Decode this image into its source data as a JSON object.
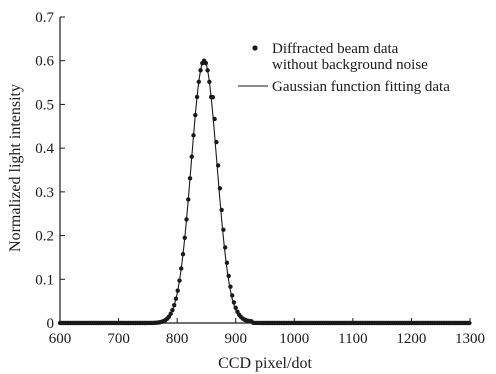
{
  "chart_data": {
    "type": "scatter",
    "title": "",
    "xlabel": "CCD pixel/dot",
    "ylabel": "Normalized light intensity",
    "xlim": [
      600,
      1300
    ],
    "ylim": [
      0,
      0.7
    ],
    "x_ticks": [
      "600",
      "700",
      "800",
      "900",
      "1000",
      "1100",
      "1200",
      "1300"
    ],
    "y_ticks": [
      "0",
      "0.1",
      "0.2",
      "0.3",
      "0.4",
      "0.5",
      "0.6",
      "0.7"
    ],
    "grid": false,
    "legend_position": "top-right",
    "legend": [
      {
        "label_lines": [
          "Diffracted beam data",
          "without background noise"
        ],
        "marker": "dot"
      },
      {
        "label_lines": [
          "Gaussian function fitting data"
        ],
        "marker": "line"
      }
    ],
    "series": [
      {
        "name": "Diffracted beam data without background noise",
        "kind": "scatter",
        "peak_value": 0.6,
        "x": [
          600,
          1300
        ],
        "y_at_edges": [
          0,
          0
        ]
      },
      {
        "name": "Gaussian function fitting data",
        "kind": "line",
        "mean": 846,
        "sigma": 22,
        "amplitude": 0.6
      }
    ]
  }
}
